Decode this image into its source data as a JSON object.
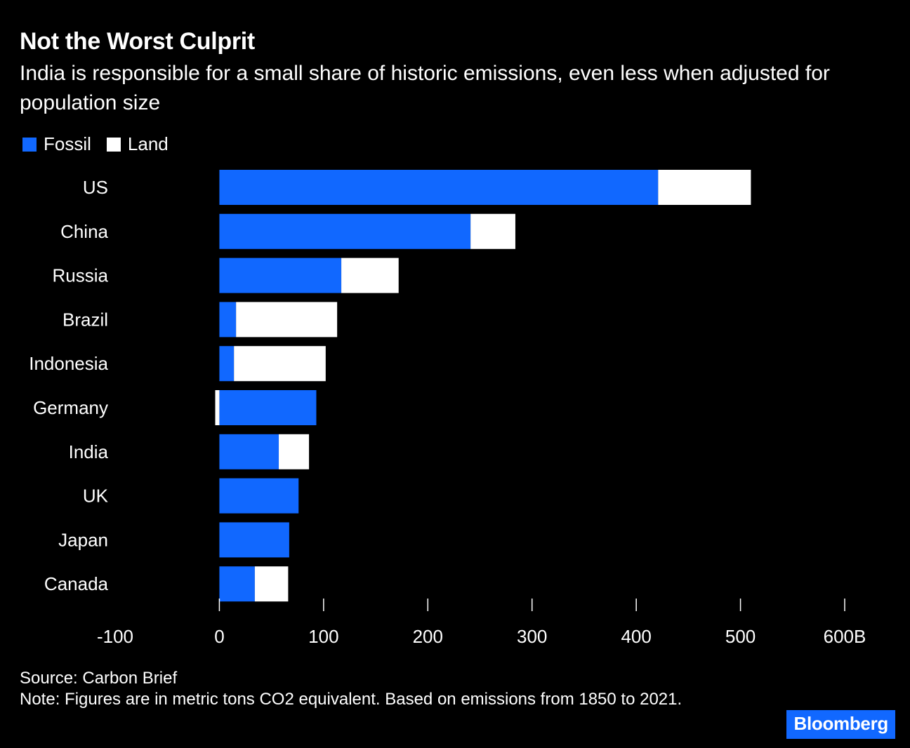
{
  "header": {
    "title": "Not the Worst Culprit",
    "subtitle": "India is responsible for a small share of historic emissions, even less when adjusted for population size"
  },
  "legend": {
    "fossil_label": "Fossil",
    "land_label": "Land"
  },
  "colors": {
    "fossil": "#1168ff",
    "land": "#ffffff",
    "background": "#000000",
    "text": "#ffffff",
    "axis": "#ffffff"
  },
  "footer": {
    "source": "Source: Carbon Brief",
    "note": "Note: Figures are in metric tons CO2 equivalent. Based on emissions from 1850 to 2021."
  },
  "brand": {
    "label": "Bloomberg"
  },
  "chart_data": {
    "type": "bar",
    "orientation": "horizontal",
    "stacked": true,
    "title": "Not the Worst Culprit",
    "xlabel": "",
    "ylabel": "",
    "categories": [
      "US",
      "China",
      "Russia",
      "Brazil",
      "Indonesia",
      "Germany",
      "India",
      "UK",
      "Japan",
      "Canada"
    ],
    "series": [
      {
        "name": "Fossil",
        "values": [
          421,
          241,
          117,
          16,
          14,
          93,
          57,
          76,
          67,
          34
        ]
      },
      {
        "name": "Land",
        "values": [
          89,
          43,
          55,
          97,
          88,
          -4,
          29,
          0,
          0,
          32
        ]
      }
    ],
    "xlim": [
      -100,
      600
    ],
    "xticks": [
      -100,
      0,
      100,
      200,
      300,
      400,
      500,
      600
    ],
    "xtick_labels": [
      "-100",
      "0",
      "100",
      "200",
      "300",
      "400",
      "500",
      "600B"
    ],
    "grid": false,
    "legend_position": "top-left"
  }
}
